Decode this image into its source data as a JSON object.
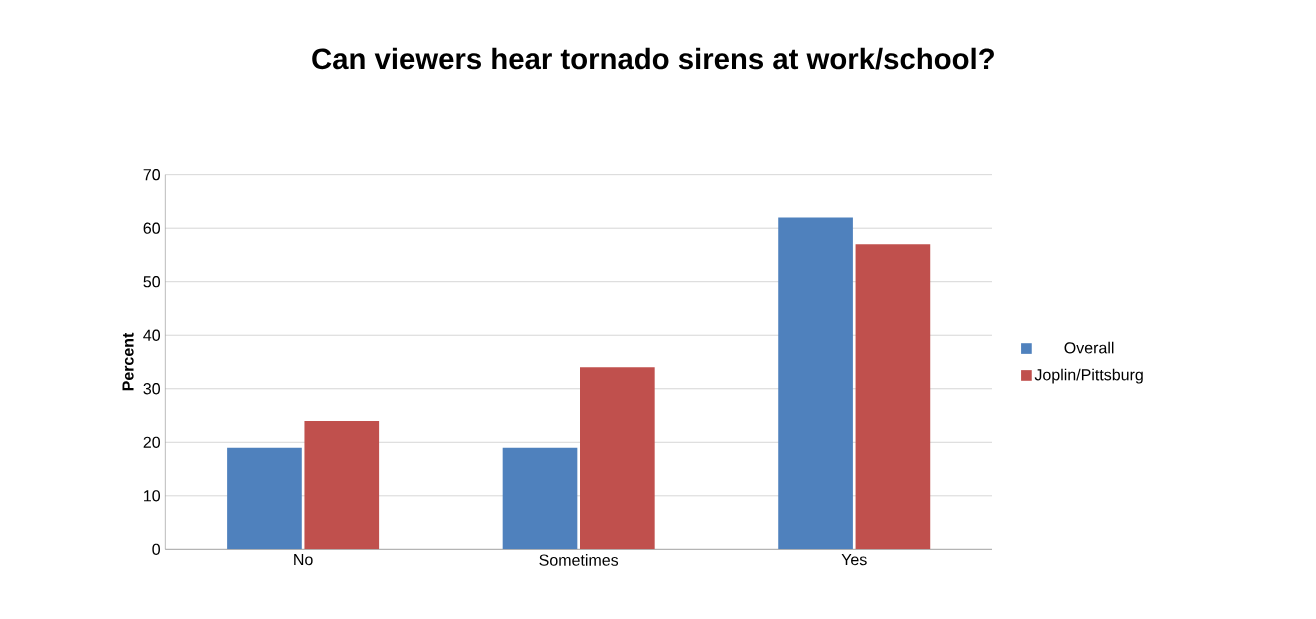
{
  "chart_data": {
    "type": "bar",
    "title": "Can viewers hear tornado sirens at work/school?",
    "ylabel": "Percent",
    "categories": [
      "No",
      "Sometimes",
      "Yes"
    ],
    "series": [
      {
        "name": "Overall",
        "color": "#4f81bd",
        "values": [
          19,
          19,
          62
        ]
      },
      {
        "name": "Joplin/Pittsburg",
        "color": "#c0504d",
        "values": [
          24,
          34,
          57
        ]
      }
    ],
    "ylim": [
      0,
      70
    ],
    "yticks": [
      0,
      10,
      20,
      30,
      40,
      50,
      60,
      70
    ],
    "grid": "y",
    "legend": "right"
  }
}
